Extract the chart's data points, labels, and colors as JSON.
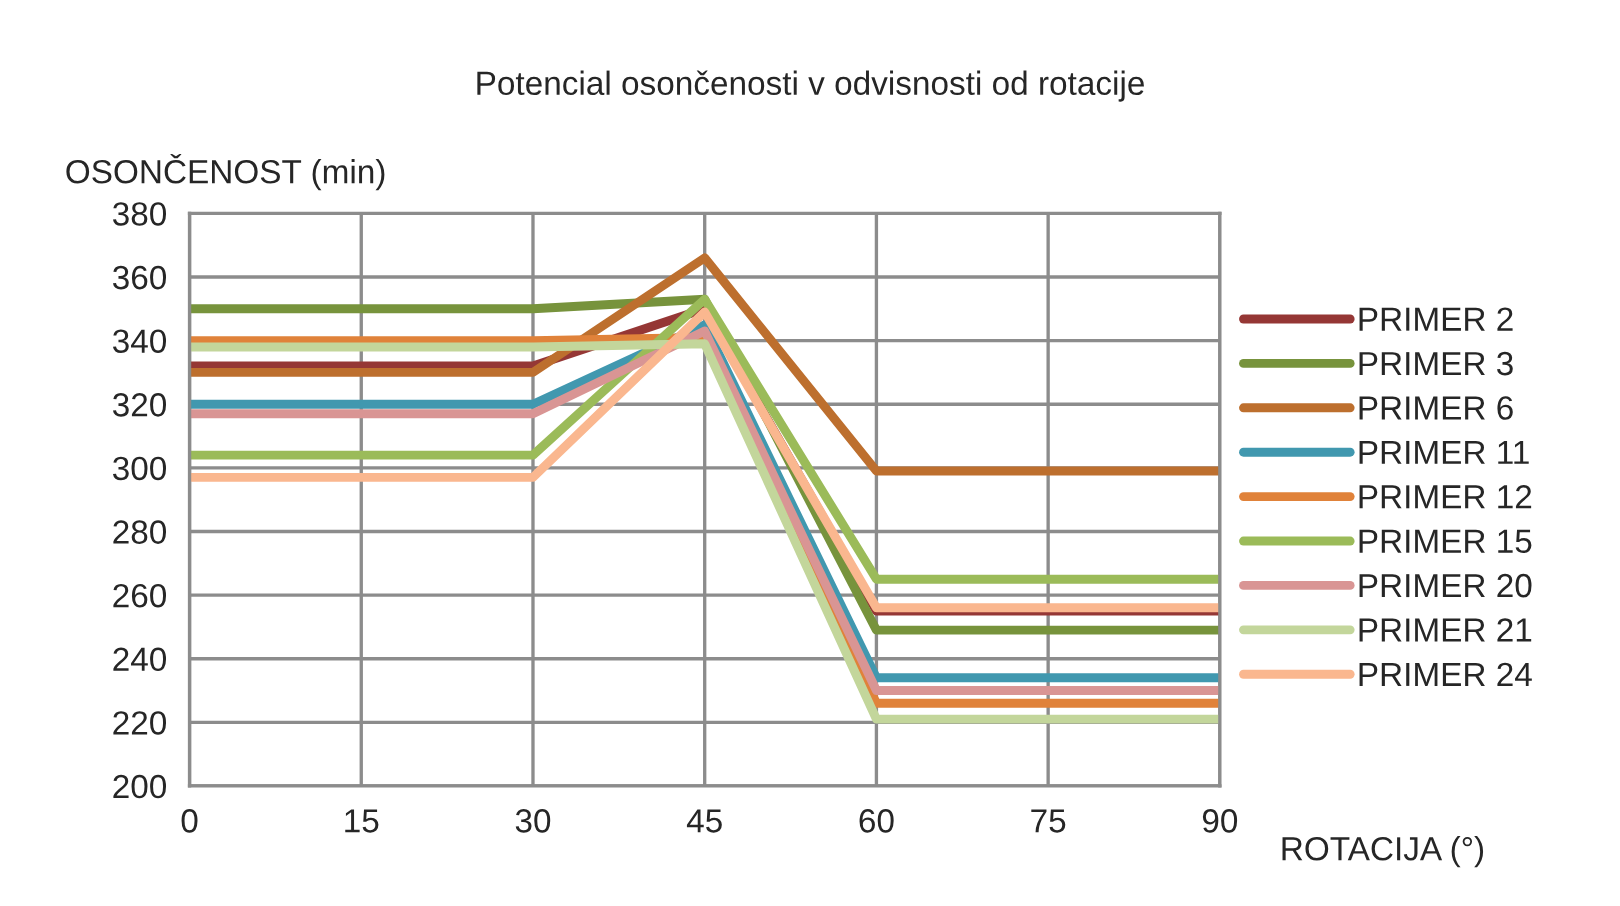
{
  "chart_data": {
    "type": "line",
    "title": "Potencial osončenosti v odvisnosti od rotacije",
    "xlabel": "ROTACIJA (°)",
    "ylabel": "OSONČENOST (min)",
    "x": [
      0,
      30,
      45,
      60,
      90
    ],
    "series": [
      {
        "name": "PRIMER 2",
        "color": "#953735",
        "values": [
          332,
          332,
          350,
          255,
          255
        ]
      },
      {
        "name": "PRIMER 3",
        "color": "#77933c",
        "values": [
          350,
          350,
          353,
          249,
          249
        ]
      },
      {
        "name": "PRIMER 6",
        "color": "#bd6f2e",
        "values": [
          330,
          330,
          366,
          299,
          299
        ]
      },
      {
        "name": "PRIMER 11",
        "color": "#4198af",
        "values": [
          320,
          320,
          345,
          234,
          234
        ]
      },
      {
        "name": "PRIMER 12",
        "color": "#e0823a",
        "values": [
          340,
          340,
          341,
          226,
          226
        ]
      },
      {
        "name": "PRIMER 15",
        "color": "#9bbb59",
        "values": [
          304,
          304,
          353,
          265,
          265
        ]
      },
      {
        "name": "PRIMER 20",
        "color": "#d99594",
        "values": [
          317,
          317,
          343,
          230,
          230
        ]
      },
      {
        "name": "PRIMER 21",
        "color": "#c3d69b",
        "values": [
          338,
          338,
          339,
          221,
          221
        ]
      },
      {
        "name": "PRIMER 24",
        "color": "#fab78f",
        "values": [
          297,
          297,
          349,
          256,
          256
        ]
      }
    ],
    "xlim": [
      0,
      90
    ],
    "xticks": [
      0,
      15,
      30,
      45,
      60,
      75,
      90
    ],
    "ylim": [
      200,
      380
    ],
    "yticks": [
      200,
      220,
      240,
      260,
      280,
      300,
      320,
      340,
      360,
      380
    ],
    "grid": true,
    "legend": "right",
    "marker": "none",
    "line_style": "solid"
  }
}
